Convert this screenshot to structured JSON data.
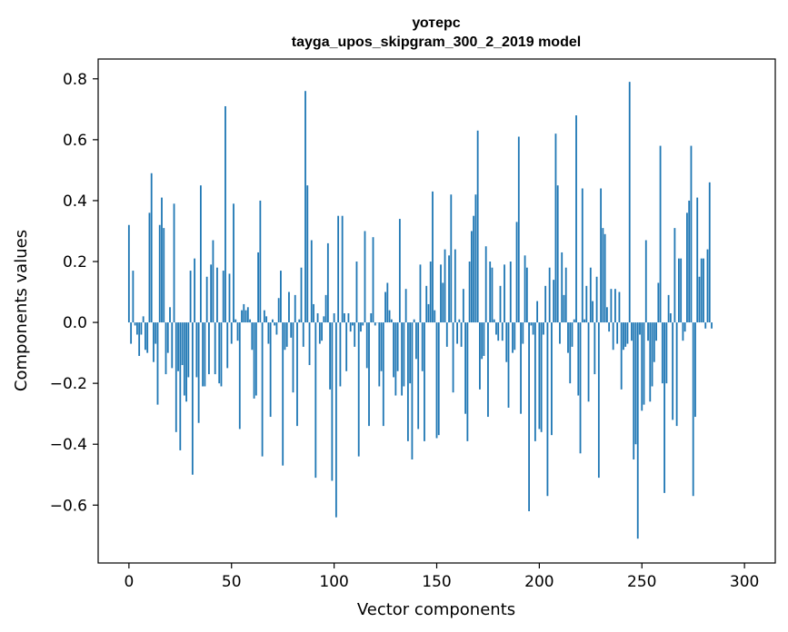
{
  "chart_data": {
    "type": "bar",
    "title_line1": "уотерс",
    "title_line2": "tayga_upos_skipgram_300_2_2019 model",
    "xlabel": "Vector components",
    "ylabel": "Components values",
    "xlim": [
      -15,
      315
    ],
    "ylim": [
      -0.79,
      0.865
    ],
    "x_ticks": [
      0,
      50,
      100,
      150,
      200,
      250,
      300
    ],
    "y_ticks": [
      -0.6,
      -0.4,
      -0.2,
      0.0,
      0.2,
      0.4,
      0.6,
      0.8
    ],
    "x_tick_labels": [
      "0",
      "50",
      "100",
      "150",
      "200",
      "250",
      "300"
    ],
    "y_tick_labels": [
      "−0.6",
      "−0.4",
      "−0.2",
      "0.0",
      "0.2",
      "0.4",
      "0.6",
      "0.8"
    ],
    "bar_color": "#1f77b4",
    "grid": false,
    "values": [
      0.32,
      -0.07,
      0.17,
      -0.01,
      -0.04,
      -0.11,
      -0.04,
      0.02,
      -0.09,
      -0.1,
      0.36,
      0.49,
      -0.13,
      -0.07,
      -0.27,
      0.32,
      0.41,
      0.31,
      -0.17,
      -0.1,
      0.05,
      -0.15,
      0.39,
      -0.36,
      -0.16,
      -0.42,
      -0.14,
      -0.24,
      -0.26,
      -0.18,
      0.17,
      -0.5,
      0.21,
      -0.18,
      -0.33,
      0.45,
      -0.21,
      -0.21,
      0.15,
      -0.17,
      0.19,
      0.27,
      -0.17,
      0.18,
      -0.2,
      -0.21,
      0.17,
      0.71,
      -0.15,
      0.16,
      -0.07,
      0.39,
      0.01,
      -0.06,
      -0.35,
      0.04,
      0.06,
      0.04,
      0.05,
      0.01,
      -0.09,
      -0.25,
      -0.24,
      0.23,
      0.4,
      -0.44,
      0.04,
      0.02,
      -0.07,
      -0.31,
      0.01,
      -0.01,
      -0.04,
      0.08,
      0.17,
      -0.47,
      -0.09,
      -0.08,
      0.1,
      -0.05,
      -0.23,
      0.09,
      -0.34,
      0.01,
      0.18,
      -0.08,
      0.76,
      0.45,
      -0.14,
      0.27,
      0.06,
      -0.51,
      0.03,
      -0.07,
      -0.06,
      0.02,
      0.09,
      0.26,
      -0.22,
      -0.52,
      0.03,
      -0.64,
      0.35,
      -0.21,
      0.35,
      0.03,
      -0.16,
      0.03,
      -0.03,
      -0.01,
      -0.08,
      0.2,
      -0.44,
      -0.03,
      -0.01,
      0.3,
      -0.15,
      -0.34,
      0.03,
      0.28,
      -0.01,
      0.0,
      -0.21,
      -0.16,
      -0.34,
      0.1,
      0.13,
      0.04,
      0.01,
      -0.18,
      -0.24,
      -0.16,
      0.34,
      -0.24,
      -0.21,
      0.11,
      -0.39,
      -0.2,
      -0.45,
      0.01,
      -0.12,
      -0.35,
      0.19,
      -0.16,
      -0.39,
      0.12,
      0.06,
      0.2,
      0.43,
      0.04,
      -0.38,
      -0.37,
      0.19,
      0.13,
      0.24,
      -0.08,
      0.22,
      0.42,
      -0.23,
      0.24,
      -0.07,
      0.01,
      -0.08,
      0.11,
      -0.3,
      -0.39,
      0.2,
      0.3,
      0.35,
      0.42,
      0.63,
      -0.22,
      -0.12,
      -0.11,
      0.25,
      -0.31,
      0.2,
      0.18,
      0.01,
      -0.04,
      -0.06,
      0.12,
      -0.06,
      0.19,
      -0.13,
      -0.28,
      0.2,
      -0.1,
      -0.09,
      0.33,
      0.61,
      -0.3,
      -0.07,
      0.22,
      0.18,
      -0.62,
      -0.01,
      -0.04,
      -0.39,
      0.07,
      -0.35,
      -0.36,
      -0.04,
      0.12,
      -0.57,
      0.18,
      -0.37,
      0.14,
      0.62,
      0.45,
      -0.07,
      0.23,
      0.09,
      0.18,
      -0.1,
      -0.2,
      -0.08,
      0.01,
      0.68,
      -0.24,
      -0.43,
      0.44,
      0.01,
      0.12,
      -0.26,
      0.18,
      0.07,
      -0.17,
      0.15,
      -0.51,
      0.44,
      0.31,
      0.29,
      0.05,
      -0.03,
      0.11,
      -0.09,
      0.11,
      -0.07,
      0.1,
      -0.22,
      -0.09,
      -0.08,
      -0.07,
      0.79,
      -0.06,
      -0.45,
      -0.4,
      -0.71,
      -0.04,
      -0.29,
      -0.27,
      0.27,
      -0.06,
      -0.26,
      -0.21,
      -0.13,
      -0.06,
      0.13,
      0.58,
      -0.2,
      -0.56,
      -0.2,
      0.09,
      0.03,
      -0.32,
      0.31,
      -0.34,
      0.21,
      0.21,
      -0.06,
      -0.03,
      0.36,
      0.4,
      0.58,
      -0.57,
      -0.31,
      0.41,
      0.15,
      0.21,
      0.21,
      -0.02,
      0.24,
      0.46,
      -0.02
    ]
  }
}
